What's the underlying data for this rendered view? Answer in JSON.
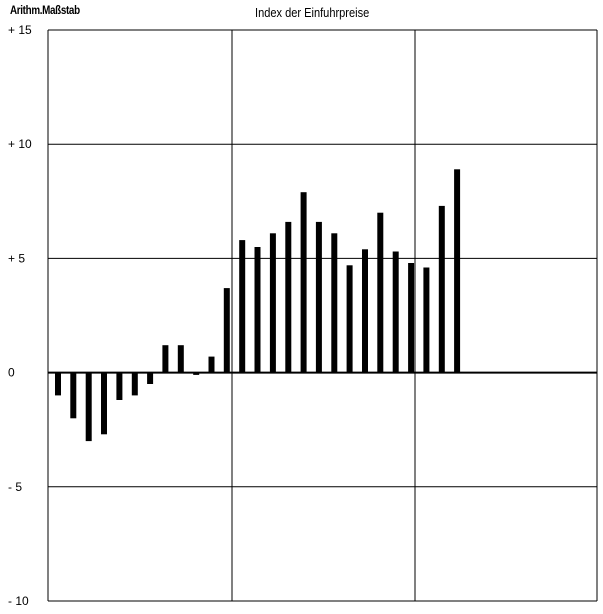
{
  "header": {
    "scale_label": "Arithm.Maßstab",
    "title": "Index der Einfuhrpreise"
  },
  "chart_data": {
    "type": "bar",
    "title": "Index der Einfuhrpreise",
    "xlabel": "",
    "ylabel": "",
    "ylim": [
      -10,
      15
    ],
    "yticks": [
      15,
      10,
      5,
      0,
      -5,
      -10
    ],
    "ytick_labels": [
      "+ 15",
      "+ 10",
      "+ 5",
      "0",
      "- 5",
      "- 10"
    ],
    "grid": true,
    "values": [
      -1.0,
      -2.0,
      -3.0,
      -2.7,
      -1.2,
      -1.0,
      -0.5,
      1.2,
      1.2,
      -0.1,
      0.7,
      3.7,
      5.8,
      5.5,
      6.1,
      6.6,
      7.9,
      6.6,
      6.1,
      4.7,
      5.4,
      7.0,
      5.3,
      4.8,
      4.6,
      7.3,
      8.9
    ],
    "color": "#000000"
  }
}
